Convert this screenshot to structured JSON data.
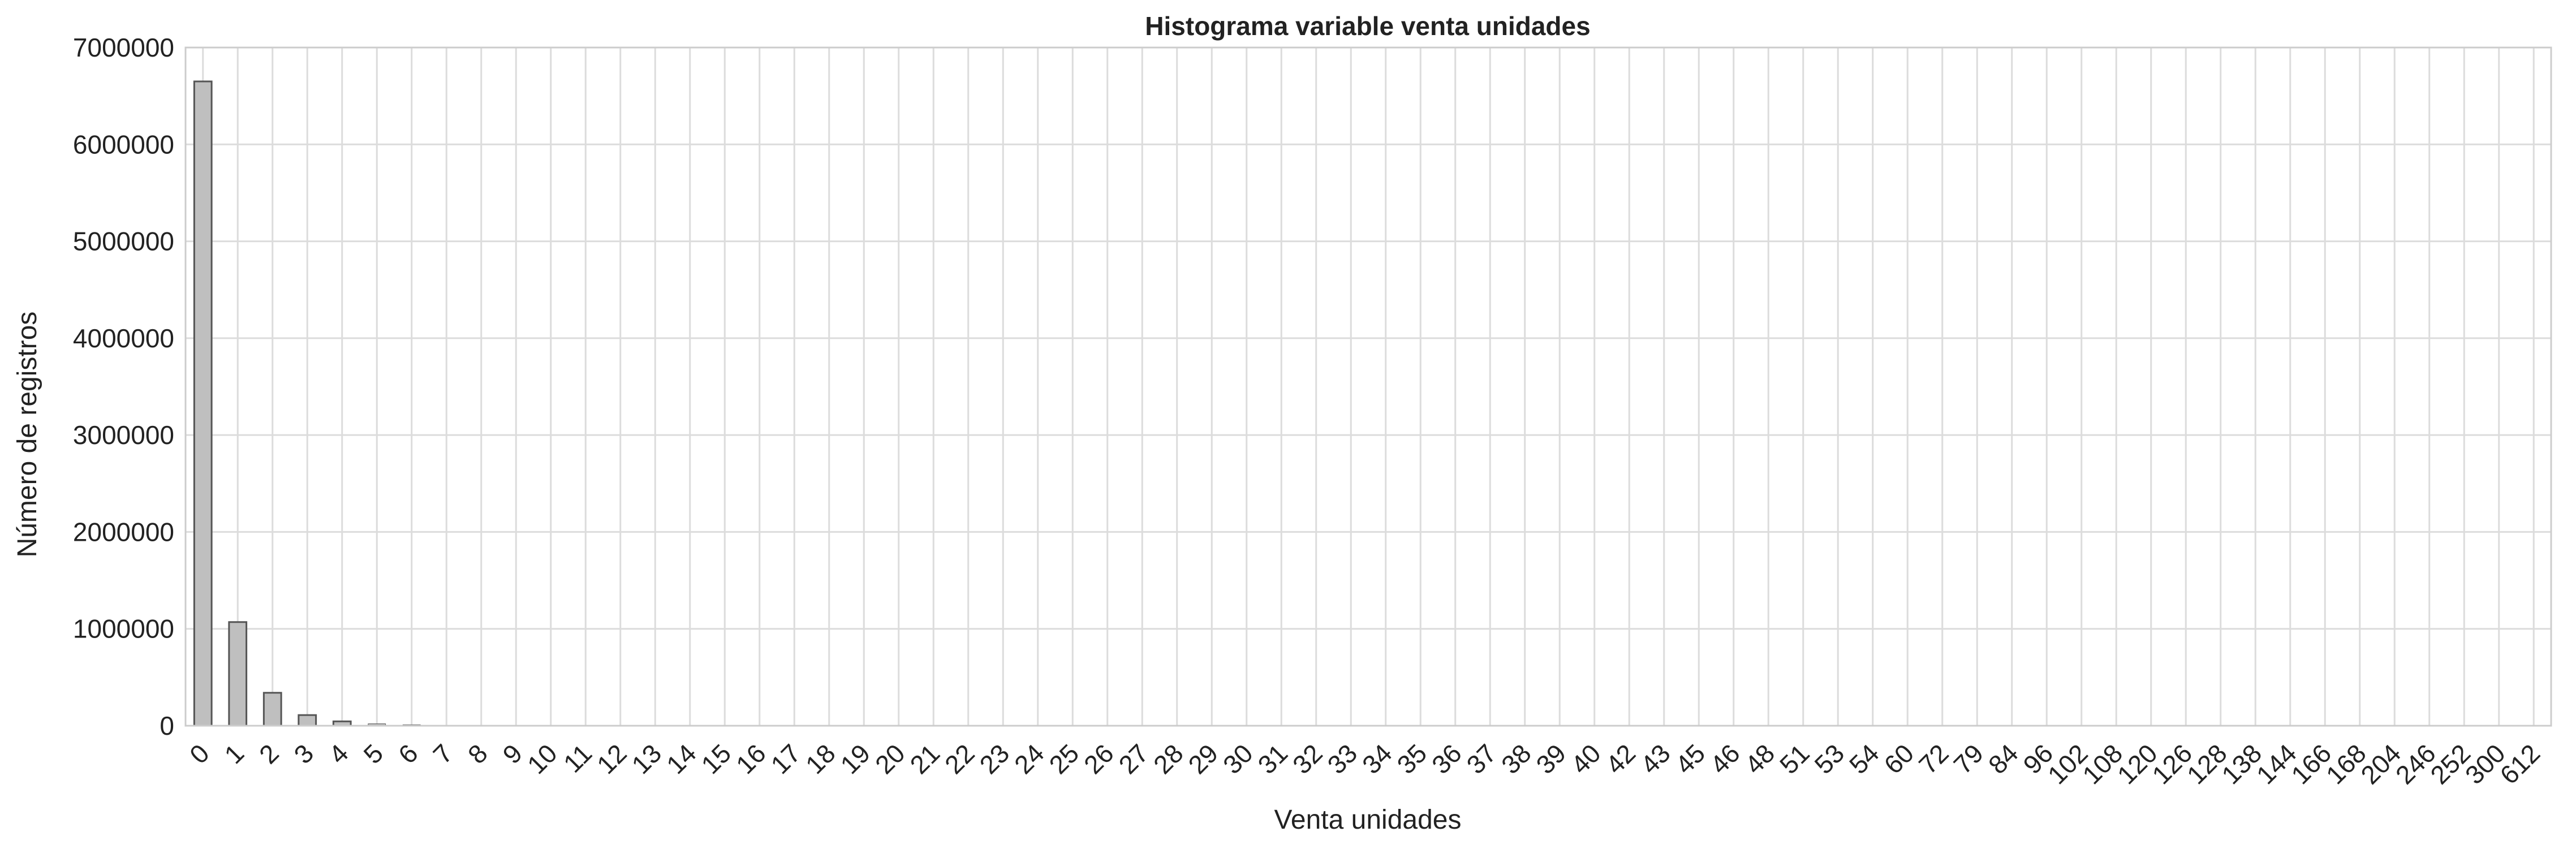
{
  "colors": {
    "bar_fill": "#bfbfbf",
    "bar_edge": "#555555",
    "grid": "#dcdcdc",
    "frame": "#cccccc",
    "text": "#222222"
  },
  "chart_data": {
    "type": "bar",
    "title": "Histograma variable venta unidades",
    "xlabel": "Venta unidades",
    "ylabel": "Número de registros",
    "ylim": [
      0,
      7000000
    ],
    "yticks": [
      0,
      1000000,
      2000000,
      3000000,
      4000000,
      5000000,
      6000000,
      7000000
    ],
    "ytick_labels": [
      "0",
      "1000000",
      "2000000",
      "3000000",
      "4000000",
      "5000000",
      "6000000",
      "7000000"
    ],
    "grid": true,
    "categories": [
      "0",
      "1",
      "2",
      "3",
      "4",
      "5",
      "6",
      "7",
      "8",
      "9",
      "10",
      "11",
      "12",
      "13",
      "14",
      "15",
      "16",
      "17",
      "18",
      "19",
      "20",
      "21",
      "22",
      "23",
      "24",
      "25",
      "26",
      "27",
      "28",
      "29",
      "30",
      "31",
      "32",
      "33",
      "34",
      "35",
      "36",
      "37",
      "38",
      "39",
      "40",
      "42",
      "43",
      "45",
      "46",
      "48",
      "51",
      "53",
      "54",
      "60",
      "72",
      "79",
      "84",
      "96",
      "102",
      "108",
      "120",
      "126",
      "128",
      "138",
      "144",
      "166",
      "168",
      "204",
      "246",
      "252",
      "300",
      "612"
    ],
    "values": [
      6650000,
      1070000,
      340000,
      110000,
      45000,
      20000,
      10000,
      5000,
      2500,
      1500,
      1000,
      600,
      500,
      300,
      250,
      200,
      150,
      120,
      100,
      80,
      70,
      60,
      50,
      45,
      40,
      35,
      30,
      25,
      22,
      20,
      18,
      15,
      12,
      10,
      9,
      8,
      7,
      6,
      5,
      5,
      4,
      4,
      3,
      3,
      3,
      2,
      2,
      2,
      2,
      2,
      1,
      1,
      1,
      1,
      1,
      1,
      1,
      1,
      1,
      1,
      1,
      1,
      1,
      1,
      1,
      1,
      1,
      1
    ]
  }
}
